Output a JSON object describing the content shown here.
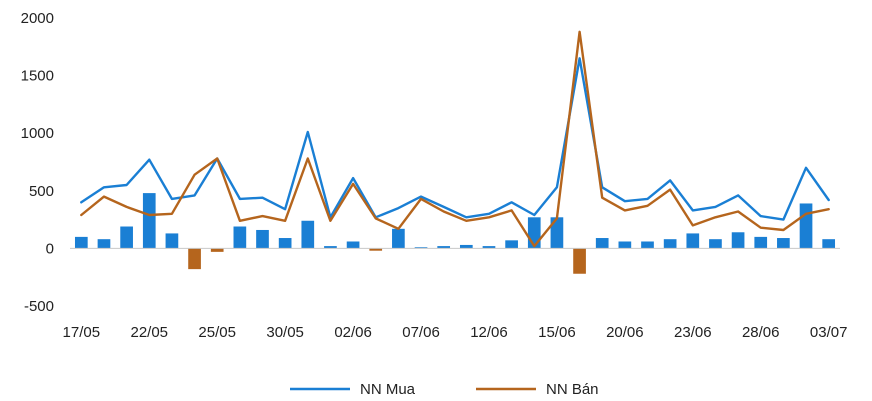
{
  "chart_data": {
    "type": "bar",
    "title": "",
    "xlabel": "",
    "ylabel": "",
    "ylim": [
      -500,
      2000
    ],
    "yticks": [
      2000,
      1500,
      1000,
      500,
      0,
      -500
    ],
    "grid": false,
    "legend_position": "bottom",
    "x_tick_labels": [
      "17/05",
      "22/05",
      "25/05",
      "30/05",
      "02/06",
      "07/06",
      "12/06",
      "15/06",
      "20/06",
      "23/06",
      "28/06",
      "03/07"
    ],
    "x_tick_indices": [
      0,
      3,
      6,
      9,
      12,
      15,
      18,
      21,
      24,
      27,
      30,
      33
    ],
    "bar_series": [
      {
        "values": [
          100,
          80,
          190,
          480,
          130,
          -180,
          -30,
          190,
          160,
          90,
          240,
          20,
          60,
          -20,
          170,
          10,
          20,
          30,
          20,
          70,
          270,
          270,
          -220,
          90,
          60,
          60,
          80,
          130,
          80,
          140,
          100,
          90,
          390,
          80
        ],
        "color": "#1a7fd4"
      }
    ],
    "line_series": [
      {
        "name": "NN Mua",
        "color": "#1a7fd4",
        "values": [
          400,
          530,
          550,
          770,
          430,
          460,
          780,
          430,
          440,
          340,
          1010,
          270,
          610,
          270,
          350,
          450,
          360,
          270,
          300,
          400,
          290,
          530,
          1650,
          530,
          410,
          430,
          590,
          330,
          360,
          460,
          280,
          250,
          700,
          420
        ]
      },
      {
        "name": "NN Bán",
        "color": "#b5651d",
        "values": [
          290,
          450,
          360,
          290,
          300,
          640,
          780,
          240,
          280,
          240,
          780,
          240,
          560,
          260,
          170,
          430,
          320,
          240,
          270,
          330,
          20,
          260,
          1880,
          440,
          330,
          370,
          510,
          200,
          270,
          320,
          180,
          160,
          300,
          340
        ]
      }
    ]
  }
}
